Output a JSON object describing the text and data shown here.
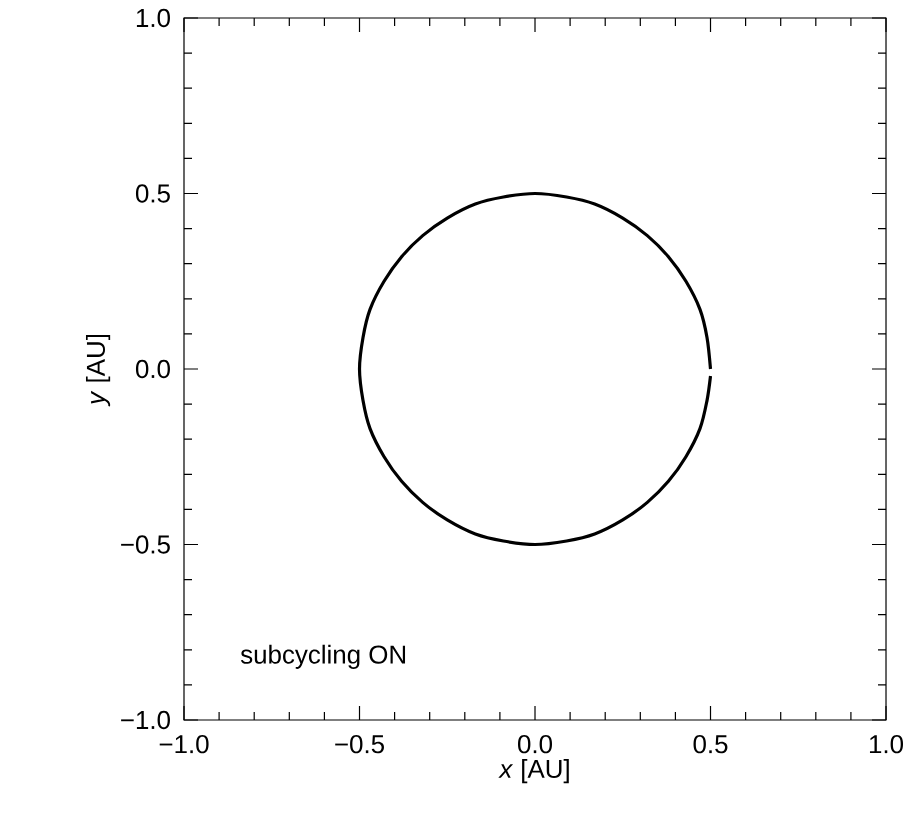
{
  "chart_data": {
    "type": "line",
    "xlabel": "*x* [AU]",
    "ylabel": "*y* [AU]",
    "x": [
      0.5,
      0.49,
      0.47,
      0.43,
      0.38,
      0.32,
      0.25,
      0.17,
      0.09,
      0.0,
      -0.09,
      -0.17,
      -0.25,
      -0.32,
      -0.38,
      -0.43,
      -0.47,
      -0.49,
      -0.5,
      -0.49,
      -0.47,
      -0.43,
      -0.38,
      -0.32,
      -0.25,
      -0.17,
      -0.09,
      0.0,
      0.09,
      0.17,
      0.25,
      0.32,
      0.38,
      0.43,
      0.47,
      0.49,
      0.5
    ],
    "series": [
      {
        "color": "#000000",
        "values": [
          0.0,
          0.09,
          0.17,
          0.25,
          0.32,
          0.38,
          0.43,
          0.47,
          0.49,
          0.5,
          0.49,
          0.47,
          0.43,
          0.38,
          0.32,
          0.25,
          0.17,
          0.09,
          0.0,
          -0.09,
          -0.17,
          -0.25,
          -0.32,
          -0.38,
          -0.43,
          -0.47,
          -0.49,
          -0.5,
          -0.49,
          -0.47,
          -0.43,
          -0.38,
          -0.32,
          -0.25,
          -0.17,
          -0.09,
          -0.02
        ]
      }
    ],
    "xlim": [
      -1,
      1
    ],
    "ylim": [
      -1,
      1
    ],
    "xticks": [
      {
        "value": -1,
        "label": "−1.0"
      },
      {
        "value": -0.5,
        "label": "−0.5"
      },
      {
        "value": 0,
        "label": "0.0"
      },
      {
        "value": 0.5,
        "label": "0.5"
      },
      {
        "value": 1,
        "label": "1.0"
      }
    ],
    "yticks": [
      {
        "value": -1,
        "label": "−1.0"
      },
      {
        "value": -0.5,
        "label": "−0.5"
      },
      {
        "value": 0,
        "label": "0.0"
      },
      {
        "value": 0.5,
        "label": "0.5"
      },
      {
        "value": 1,
        "label": "1.0"
      }
    ],
    "annotations": [
      "subcycling ON"
    ],
    "marker": "none",
    "line_style": "solid"
  }
}
